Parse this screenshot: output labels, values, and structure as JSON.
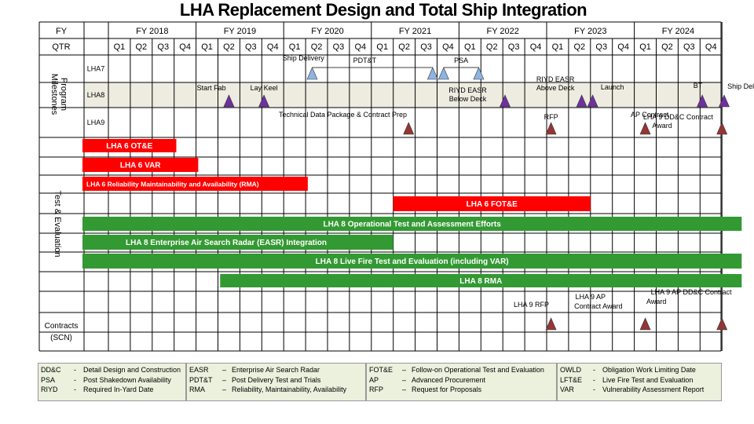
{
  "title": "LHA Replacement Design and Total Ship Integration",
  "header": {
    "fy_label": "FY",
    "qtr_label": "QTR"
  },
  "fiscal_years": [
    "FY 2018",
    "FY 2019",
    "FY 2020",
    "FY 2021",
    "FY 2022",
    "FY 2023",
    "FY 2024"
  ],
  "quarters": [
    "Q1",
    "Q2",
    "Q3",
    "Q4"
  ],
  "sections": {
    "program_milestones": "Program Milestones",
    "test_evaluation": "Test & Evaluation",
    "contracts": "Contracts (SCN)"
  },
  "chart_data": {
    "type": "gantt",
    "time_axis": {
      "start": "FY2018 Q1",
      "end": "FY2024 Q4",
      "unit": "quarter"
    },
    "milestone_rows": [
      {
        "label": "LHA7",
        "spans": [
          {
            "label": "Ship Delivery",
            "start_q": 9.3,
            "end_q": 14.8,
            "text_q": 8.9
          },
          {
            "label": "PDT&T",
            "start_q": 9.3,
            "end_q": 14.8,
            "text_q": 11.7
          },
          {
            "label": "PSA",
            "start_q": 15.3,
            "end_q": 16.9,
            "text_q": 16.1
          }
        ],
        "markers": [
          {
            "at_q": 9.3,
            "color": "#8eb4e3"
          },
          {
            "at_q": 14.8,
            "color": "#8eb4e3"
          },
          {
            "at_q": 15.3,
            "color": "#8eb4e3"
          },
          {
            "at_q": 16.9,
            "color": "#8eb4e3"
          }
        ]
      },
      {
        "label": "LHA8",
        "markers": [
          {
            "at_q": 5.5,
            "color": "#7030a0",
            "label": "Start Fab",
            "label_q": 4.7
          },
          {
            "at_q": 7.1,
            "color": "#7030a0",
            "label": "Lay Keel",
            "label_q": 7.1
          },
          {
            "at_q": 18.1,
            "color": "#7030a0",
            "label": "RIYD EASR",
            "label2": "Below Deck",
            "label_q": 16.4
          },
          {
            "at_q": 21.6,
            "color": "#7030a0",
            "label": "RIYD EASR",
            "label2": "Above Deck",
            "label_q": 20.4
          },
          {
            "at_q": 22.1,
            "color": "#7030a0",
            "label": "Launch",
            "label_q": 23.0
          },
          {
            "at_q": 27.1,
            "color": "#7030a0",
            "label": "BT",
            "label_q": 26.9
          },
          {
            "at_q": 28.1,
            "color": "#7030a0",
            "label": "Ship Delivery",
            "label_q": 29.2
          }
        ]
      },
      {
        "label": "LHA9",
        "markers": [
          {
            "at_q": 13.7,
            "color": "#943634",
            "label": "Technical Data Package & Contract Prep",
            "label_q": 10.7
          },
          {
            "at_q": 20.2,
            "color": "#943634",
            "label": "RFP",
            "label_q": 20.2
          },
          {
            "at_q": 24.5,
            "color": "#943634",
            "label": "AP Contract",
            "label_q": 24.7
          },
          {
            "at_q": 28.0,
            "color": "#943634",
            "label": "LHA 9 DD&C Contract",
            "label2": "Award",
            "label_q": 26.0
          }
        ]
      }
    ],
    "te_bars": [
      {
        "label": "LHA 6 OT&E",
        "start_q": 0.0,
        "end_q": 3.1,
        "color": "#ff0000"
      },
      {
        "label": "LHA 6 VAR",
        "start_q": 0.0,
        "end_q": 4.1,
        "color": "#ff0000"
      },
      {
        "label": "LHA 6 Reliability Maintainability and Availability (RMA)",
        "start_q": 0.0,
        "end_q": 9.1,
        "color": "#ff0000"
      },
      {
        "label": "LHA 6 FOT&E",
        "start_q": 13.0,
        "end_q": 22.0,
        "color": "#ff0000"
      },
      {
        "label": "LHA 8 Operational  Test and Assessment Efforts",
        "start_q": 0.0,
        "end_q": 28.9,
        "color": "#339933"
      },
      {
        "label": "LHA 8 Enterprise  Air Search Radar (EASR) Integration",
        "start_q": 0.0,
        "end_q": 13.0,
        "color": "#339933"
      },
      {
        "label": "LHA 8 Live Fire Test and Evaluation  (including VAR)",
        "start_q": 0.0,
        "end_q": 28.9,
        "color": "#339933"
      },
      {
        "label": "LHA 8 RMA",
        "start_q": 5.1,
        "end_q": 28.9,
        "color": "#339933"
      }
    ],
    "contracts": [
      {
        "label": "LHA 9 RFP",
        "at_q": 20.2,
        "label_q": 19.3,
        "color": "#943634"
      },
      {
        "label": "LHA 9 AP",
        "label2": "Contract Award",
        "at_q": 24.5,
        "label_q": 22.0,
        "color": "#943634"
      },
      {
        "label": "LHA 9 AP DD&C Contract",
        "label2": "Award",
        "at_q": 28.0,
        "label_q": 25.7,
        "color": "#943634"
      }
    ]
  },
  "legend": [
    {
      "rows": [
        [
          "DD&C",
          "-",
          "Detail Design and Construction"
        ],
        [
          "PSA",
          "-",
          "Post Shakedown Availability"
        ],
        [
          "RIYD",
          "-",
          "Required In-Yard Date"
        ]
      ]
    },
    {
      "rows": [
        [
          "EASR",
          "–",
          "Enterprise Air Search Radar"
        ],
        [
          "PDT&T",
          "–",
          "Post Delivery Test and Trials"
        ],
        [
          "RMA",
          "–",
          "Reliability, Maintainability, Availability"
        ]
      ]
    },
    {
      "rows": [
        [
          "FOT&E",
          "–",
          "Follow-on Operational Test and Evaluation"
        ],
        [
          "AP",
          "–",
          "Advanced Procurement"
        ],
        [
          "RFP",
          "–",
          "Request for Proposals"
        ]
      ]
    },
    {
      "rows": [
        [
          "OWLD",
          "-",
          "Obligation Work Limiting Date"
        ],
        [
          "LFT&E",
          "-",
          "Live Fire Test and Evaluation"
        ],
        [
          "VAR",
          "-",
          "Vulnerability Assessment Report"
        ]
      ]
    }
  ]
}
